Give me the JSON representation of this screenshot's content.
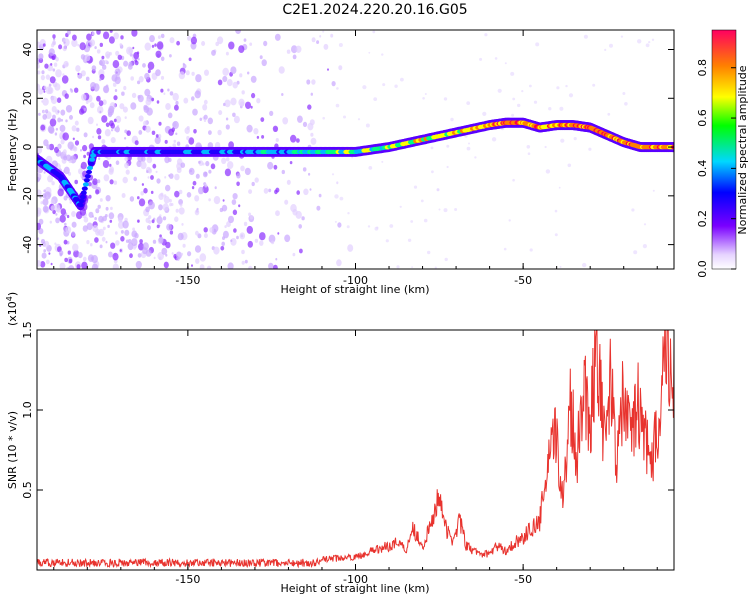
{
  "title": "C2E1.2024.220.20.16.G05",
  "colors": {
    "line": "#e8332e",
    "spectrogram_ridge_low": "#6a00ff",
    "frame": "#000000"
  },
  "chart_data": [
    {
      "type": "heatmap",
      "title": "C2E1.2024.220.20.16.G05",
      "xlabel": "Height of straight line (km)",
      "ylabel": "Frequency (Hz)",
      "xlim": [
        -195,
        -5
      ],
      "ylim": [
        -50,
        48
      ],
      "x_ticks": [
        -150,
        -100,
        -50
      ],
      "y_ticks": [
        -40,
        -20,
        0,
        20,
        40
      ],
      "colorbar": {
        "label": "Normalized spectral amplitude",
        "range": [
          0,
          0.95
        ],
        "ticks": [
          "0.0",
          "0.2",
          "0.4",
          "0.6",
          "0.8"
        ],
        "colormap": "rainbow (purple-blue-cyan-green-yellow-orange-red)"
      },
      "ridge": {
        "description": "dominant frequency ridge",
        "x": [
          -195,
          -188,
          -185,
          -182,
          -178,
          -170,
          -160,
          -150,
          -140,
          -130,
          -120,
          -110,
          -100,
          -90,
          -80,
          -70,
          -60,
          -55,
          -50,
          -45,
          -40,
          -35,
          -30,
          -25,
          -20,
          -15,
          -10,
          -5
        ],
        "y": [
          -5,
          -12,
          -18,
          -24,
          -2,
          -2,
          -2,
          -2,
          -2,
          -2,
          -2,
          -2,
          -2,
          0,
          3,
          6,
          9,
          10,
          10,
          8,
          9,
          9,
          8,
          5,
          2,
          0,
          0,
          0
        ]
      },
      "grid": false
    },
    {
      "type": "line",
      "xlabel": "Height of straight line (km)",
      "ylabel": "SNR (10 * v/v)",
      "y_multiplier_label": "(x10",
      "y_multiplier_exp": "4",
      "y_multiplier_close": ")",
      "xlim": [
        -195,
        -5
      ],
      "ylim": [
        0,
        1.5
      ],
      "x_ticks": [
        -150,
        -100,
        -50
      ],
      "y_ticks": [
        "0.5",
        "1.0",
        "1.5"
      ],
      "series": [
        {
          "x": [
            -195,
            -185,
            -175,
            -165,
            -155,
            -145,
            -135,
            -125,
            -115,
            -108,
            -100,
            -95,
            -90,
            -87,
            -85,
            -83,
            -80,
            -77,
            -75,
            -73,
            -71,
            -69,
            -67,
            -65,
            -62,
            -60,
            -58,
            -55,
            -52,
            -50,
            -48,
            -45,
            -43,
            -40,
            -38,
            -36,
            -34,
            -32,
            -30,
            -28,
            -26,
            -24,
            -22,
            -20,
            -18,
            -16,
            -14,
            -12,
            -10,
            -8,
            -7,
            -6,
            -5
          ],
          "y": [
            0.04,
            0.04,
            0.05,
            0.04,
            0.05,
            0.04,
            0.04,
            0.04,
            0.05,
            0.07,
            0.08,
            0.12,
            0.15,
            0.18,
            0.12,
            0.27,
            0.15,
            0.3,
            0.5,
            0.25,
            0.18,
            0.32,
            0.15,
            0.12,
            0.1,
            0.1,
            0.15,
            0.12,
            0.18,
            0.2,
            0.25,
            0.3,
            0.6,
            0.85,
            0.4,
            1.1,
            0.7,
            1.2,
            0.9,
            1.5,
            0.8,
            1.15,
            0.7,
            1.1,
            0.8,
            1.05,
            0.9,
            0.6,
            0.9,
            1.3,
            1.48,
            1.2,
            1.3
          ]
        }
      ],
      "grid": false
    }
  ]
}
